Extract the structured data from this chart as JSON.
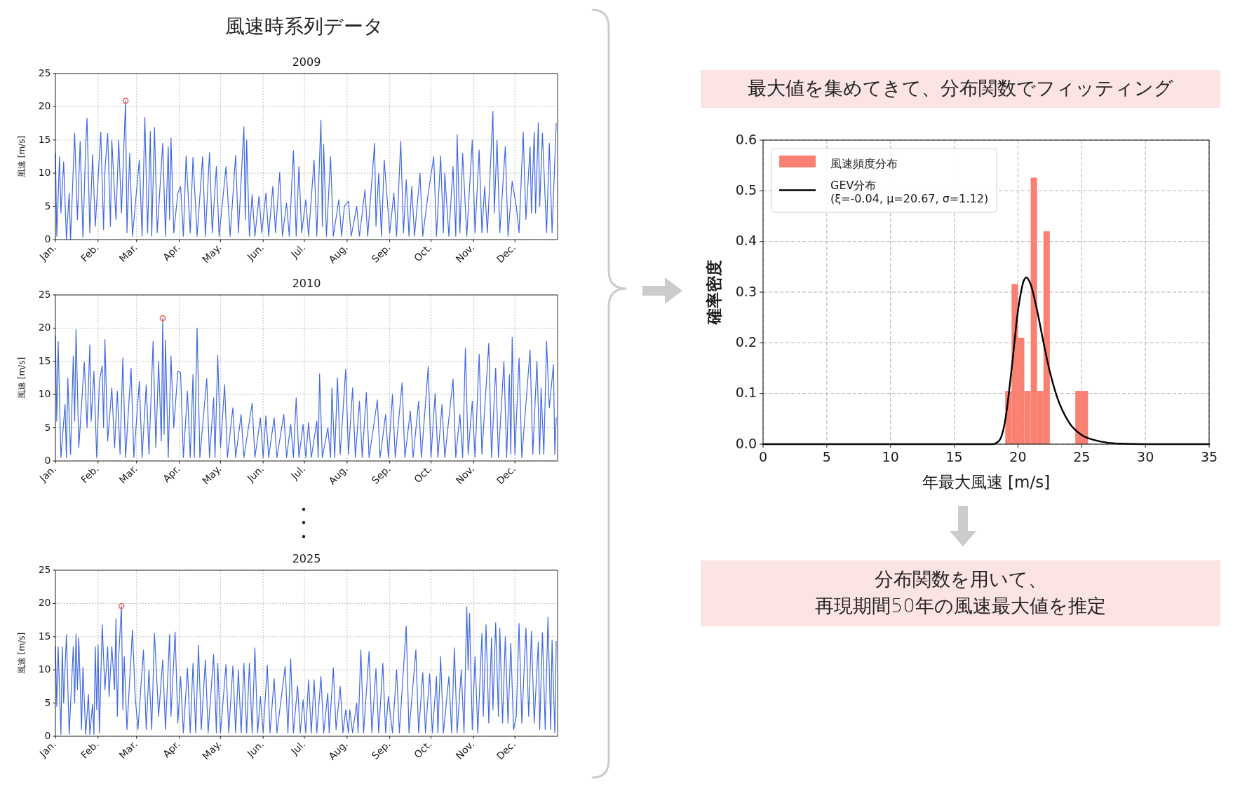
{
  "chart_data": [
    {
      "type": "other",
      "title": "風速時系列データ"
    },
    {
      "type": "line",
      "title": "2009",
      "ylabel": "風速 [m/s]",
      "xlim": [
        "2009-01-01",
        "2010-01-01"
      ],
      "xticks": [
        {
          "value": "2009-01-01",
          "label": "Jan."
        },
        {
          "value": "2009-02-01",
          "label": "Feb."
        },
        {
          "value": "2009-03-01",
          "label": "Mar."
        },
        {
          "value": "2009-04-01",
          "label": "Apr."
        },
        {
          "value": "2009-05-01",
          "label": "May."
        },
        {
          "value": "2009-06-01",
          "label": "Jun."
        },
        {
          "value": "2009-07-01",
          "label": "Jul."
        },
        {
          "value": "2009-08-01",
          "label": "Aug."
        },
        {
          "value": "2009-09-01",
          "label": "Sep."
        },
        {
          "value": "2009-10-01",
          "label": "Oct."
        },
        {
          "value": "2009-11-01",
          "label": "Nov."
        },
        {
          "value": "2009-12-01",
          "label": "Dec."
        }
      ],
      "ylim": [
        0,
        25
      ],
      "yticks": [
        0,
        5,
        10,
        15,
        20,
        25
      ],
      "grid": true,
      "x": [
        "2009-01-01",
        "2009-01-02",
        "2009-01-04",
        "2009-01-05",
        "2009-01-07",
        "2009-01-09",
        "2009-01-11",
        "2009-01-12",
        "2009-01-15",
        "2009-01-17",
        "2009-01-19",
        "2009-01-21",
        "2009-01-23",
        "2009-01-24",
        "2009-01-26",
        "2009-01-28",
        "2009-01-30",
        "2009-02-03",
        "2009-02-05",
        "2009-02-06",
        "2009-02-08",
        "2009-02-10",
        "2009-02-11",
        "2009-02-14",
        "2009-02-16",
        "2009-02-18",
        "2009-02-21",
        "2009-02-22",
        "2009-02-24",
        "2009-02-26",
        "2009-03-03",
        "2009-03-05",
        "2009-03-07",
        "2009-03-09",
        "2009-03-11",
        "2009-03-12",
        "2009-03-14",
        "2009-03-16",
        "2009-03-20",
        "2009-03-22",
        "2009-03-24",
        "2009-03-25",
        "2009-03-26",
        "2009-03-28",
        "2009-03-31",
        "2009-04-02",
        "2009-04-04",
        "2009-04-06",
        "2009-04-09",
        "2009-04-11",
        "2009-04-14",
        "2009-04-18",
        "2009-04-20",
        "2009-04-23",
        "2009-04-25",
        "2009-04-28",
        "2009-04-30",
        "2009-05-05",
        "2009-05-08",
        "2009-05-12",
        "2009-05-14",
        "2009-05-18",
        "2009-05-19",
        "2009-05-20",
        "2009-05-22",
        "2009-05-24",
        "2009-05-26",
        "2009-05-29",
        "2009-05-31",
        "2009-06-03",
        "2009-06-05",
        "2009-06-08",
        "2009-06-10",
        "2009-06-13",
        "2009-06-15",
        "2009-06-18",
        "2009-06-20",
        "2009-06-23",
        "2009-06-25",
        "2009-06-27",
        "2009-06-29",
        "2009-07-02",
        "2009-07-04",
        "2009-07-08",
        "2009-07-10",
        "2009-07-13",
        "2009-07-14",
        "2009-07-15",
        "2009-07-17",
        "2009-07-20",
        "2009-07-22",
        "2009-07-26",
        "2009-07-28",
        "2009-07-30",
        "2009-08-02",
        "2009-08-04",
        "2009-08-08",
        "2009-08-10",
        "2009-08-14",
        "2009-08-16",
        "2009-08-21",
        "2009-08-22",
        "2009-08-24",
        "2009-08-26",
        "2009-08-28",
        "2009-09-01",
        "2009-09-04",
        "2009-09-06",
        "2009-09-09",
        "2009-09-11",
        "2009-09-13",
        "2009-09-15",
        "2009-09-17",
        "2009-09-19",
        "2009-09-23",
        "2009-09-25",
        "2009-09-29",
        "2009-10-03",
        "2009-10-05",
        "2009-10-08",
        "2009-10-10",
        "2009-10-11",
        "2009-10-14",
        "2009-10-17",
        "2009-10-19",
        "2009-10-20",
        "2009-10-22",
        "2009-10-24",
        "2009-10-27",
        "2009-10-31",
        "2009-11-02",
        "2009-11-05",
        "2009-11-07",
        "2009-11-09",
        "2009-11-11",
        "2009-11-15",
        "2009-11-16",
        "2009-11-18",
        "2009-11-20",
        "2009-11-24",
        "2009-11-26",
        "2009-11-29",
        "2009-12-02",
        "2009-12-04",
        "2009-12-07",
        "2009-12-09",
        "2009-12-12",
        "2009-12-13",
        "2009-12-15",
        "2009-12-16",
        "2009-12-18",
        "2009-12-19",
        "2009-12-21",
        "2009-12-24",
        "2009-12-26",
        "2009-12-28",
        "2009-12-31"
      ],
      "series": [
        {
          "color": "#4169e1",
          "values": [
            13,
            0.5,
            12.5,
            4,
            11.7,
            0,
            7,
            0,
            16,
            3,
            14.8,
            0.3,
            14,
            18.3,
            1,
            12.8,
            2,
            16.2,
            1.5,
            10.5,
            16,
            2,
            15,
            3,
            15,
            4,
            20.9,
            1,
            13,
            0.5,
            12,
            0.5,
            18.4,
            1,
            16.3,
            0.5,
            16.9,
            1,
            14.5,
            0.5,
            14,
            3,
            15.3,
            1,
            7,
            8,
            0.5,
            12.6,
            1,
            12.4,
            0.5,
            12.5,
            0.5,
            13.1,
            1,
            11,
            0.5,
            11,
            0.5,
            12.7,
            1,
            17,
            3,
            15,
            0.5,
            6.8,
            0.5,
            6.5,
            1,
            7,
            0.5,
            8,
            1,
            10.1,
            0.5,
            5.5,
            0.5,
            13.4,
            0.5,
            11,
            1,
            6,
            0.5,
            12,
            0.5,
            18,
            2,
            14.3,
            0.5,
            12.5,
            0.5,
            6,
            0.5,
            5,
            5.8,
            0.5,
            5,
            0.5,
            7.5,
            0.5,
            14.5,
            2,
            10,
            0.5,
            12,
            1,
            7,
            0.5,
            14.8,
            1,
            9,
            0.5,
            8,
            0.5,
            10,
            0.5,
            7,
            12.5,
            0.5,
            12.6,
            1,
            10,
            0.5,
            11,
            0.5,
            15.8,
            1,
            13,
            0.5,
            15,
            1,
            13.5,
            1,
            8,
            1,
            19.3,
            4,
            15,
            1,
            14,
            0.5,
            8.8,
            5,
            1,
            16.2,
            3,
            14,
            4,
            16.2,
            4,
            17.6,
            5,
            16,
            1,
            14.5,
            1,
            17.5
          ]
        },
        {
          "type": "scatter",
          "marker": "circle",
          "color": "#f26b5b",
          "x": [
            "2009-02-21"
          ],
          "values": [
            20.9
          ]
        }
      ]
    },
    {
      "type": "line",
      "title": "2010",
      "ylabel": "風速 [m/s]",
      "xlim": [
        "2010-01-01",
        "2011-01-01"
      ],
      "xticks": [
        {
          "value": "2010-01-01",
          "label": "Jan."
        },
        {
          "value": "2010-02-01",
          "label": "Feb."
        },
        {
          "value": "2010-03-01",
          "label": "Mar."
        },
        {
          "value": "2010-04-01",
          "label": "Apr."
        },
        {
          "value": "2010-05-01",
          "label": "May."
        },
        {
          "value": "2010-06-01",
          "label": "Jun."
        },
        {
          "value": "2010-07-01",
          "label": "Jul."
        },
        {
          "value": "2010-08-01",
          "label": "Aug."
        },
        {
          "value": "2010-09-01",
          "label": "Sep."
        },
        {
          "value": "2010-10-01",
          "label": "Oct."
        },
        {
          "value": "2010-11-01",
          "label": "Nov."
        },
        {
          "value": "2010-12-01",
          "label": "Dec."
        }
      ],
      "ylim": [
        0,
        25
      ],
      "yticks": [
        0,
        5,
        10,
        15,
        20,
        25
      ],
      "grid": true,
      "x": [
        "2010-01-01",
        "2010-01-02",
        "2010-01-03",
        "2010-01-05",
        "2010-01-08",
        "2010-01-09",
        "2010-01-10",
        "2010-01-12",
        "2010-01-14",
        "2010-01-15",
        "2010-01-16",
        "2010-01-18",
        "2010-01-22",
        "2010-01-24",
        "2010-01-26",
        "2010-01-27",
        "2010-01-29",
        "2010-01-31",
        "2010-02-02",
        "2010-02-04",
        "2010-02-05",
        "2010-02-06",
        "2010-02-08",
        "2010-02-11",
        "2010-02-13",
        "2010-02-15",
        "2010-02-17",
        "2010-02-19",
        "2010-02-21",
        "2010-02-25",
        "2010-02-27",
        "2010-03-03",
        "2010-03-05",
        "2010-03-08",
        "2010-03-10",
        "2010-03-13",
        "2010-03-15",
        "2010-03-17",
        "2010-03-19",
        "2010-03-20",
        "2010-03-21",
        "2010-03-22",
        "2010-03-24",
        "2010-03-26",
        "2010-03-28",
        "2010-03-31",
        "2010-04-02",
        "2010-04-04",
        "2010-04-07",
        "2010-04-09",
        "2010-04-11",
        "2010-04-12",
        "2010-04-14",
        "2010-04-16",
        "2010-04-21",
        "2010-04-23",
        "2010-04-26",
        "2010-04-27",
        "2010-04-29",
        "2010-05-01",
        "2010-05-04",
        "2010-05-06",
        "2010-05-10",
        "2010-05-12",
        "2010-05-16",
        "2010-05-18",
        "2010-05-24",
        "2010-05-26",
        "2010-05-30",
        "2010-06-01",
        "2010-06-03",
        "2010-06-05",
        "2010-06-09",
        "2010-06-11",
        "2010-06-16",
        "2010-06-18",
        "2010-06-21",
        "2010-06-23",
        "2010-06-25",
        "2010-06-27",
        "2010-06-30",
        "2010-07-02",
        "2010-07-04",
        "2010-07-06",
        "2010-07-10",
        "2010-07-11",
        "2010-07-12",
        "2010-07-14",
        "2010-07-18",
        "2010-07-20",
        "2010-07-21",
        "2010-07-23",
        "2010-07-25",
        "2010-07-27",
        "2010-07-31",
        "2010-08-02",
        "2010-08-05",
        "2010-08-07",
        "2010-08-10",
        "2010-08-12",
        "2010-08-15",
        "2010-08-17",
        "2010-08-23",
        "2010-08-25",
        "2010-08-29",
        "2010-08-31",
        "2010-09-03",
        "2010-09-05",
        "2010-09-10",
        "2010-09-12",
        "2010-09-16",
        "2010-09-18",
        "2010-09-22",
        "2010-09-24",
        "2010-09-29",
        "2010-10-01",
        "2010-10-04",
        "2010-10-06",
        "2010-10-09",
        "2010-10-11",
        "2010-10-17",
        "2010-10-19",
        "2010-10-22",
        "2010-10-24",
        "2010-10-26",
        "2010-10-28",
        "2010-10-31",
        "2010-11-02",
        "2010-11-05",
        "2010-11-07",
        "2010-11-12",
        "2010-11-14",
        "2010-11-17",
        "2010-11-19",
        "2010-11-23",
        "2010-11-25",
        "2010-11-27",
        "2010-11-28",
        "2010-11-29",
        "2010-12-01",
        "2010-12-04",
        "2010-12-06",
        "2010-12-12",
        "2010-12-14",
        "2010-12-17",
        "2010-12-19",
        "2010-12-20",
        "2010-12-22",
        "2010-12-24",
        "2010-12-26",
        "2010-12-29",
        "2010-12-30",
        "2010-12-31"
      ],
      "series": [
        {
          "color": "#4169e1",
          "values": [
            18.8,
            6,
            18,
            0.5,
            8.5,
            0.5,
            12.5,
            1,
            15.8,
            6,
            19.8,
            2,
            14.9,
            5,
            17.5,
            6,
            13.5,
            0.5,
            12,
            14.3,
            5,
            18.3,
            3,
            11,
            2,
            10.5,
            1,
            15.5,
            0.5,
            14,
            0.5,
            12,
            0.5,
            11.5,
            1,
            18,
            2,
            15,
            3,
            21.5,
            4,
            18.2,
            0.5,
            15.8,
            5,
            13.5,
            13.3,
            0.5,
            10.5,
            0.5,
            13,
            0.5,
            20,
            0.5,
            12.4,
            0.5,
            9.5,
            0.5,
            15.9,
            2,
            11.5,
            0.5,
            8,
            0.5,
            7,
            0.5,
            8.7,
            0.5,
            6.5,
            0.5,
            6.8,
            0.5,
            6.5,
            0.5,
            7,
            0.5,
            5.5,
            0.5,
            9.5,
            0.5,
            5.5,
            0.5,
            5.8,
            0.5,
            6,
            0.5,
            13.1,
            0.5,
            5,
            0.5,
            11,
            0.5,
            12.5,
            1,
            13.8,
            1,
            11,
            0.5,
            9,
            0.5,
            10.3,
            0.5,
            9.2,
            0.5,
            7,
            0.5,
            10,
            0.5,
            11.8,
            0.5,
            7.5,
            0.5,
            9,
            0.5,
            14.2,
            0.5,
            10.2,
            0.5,
            8.5,
            0.5,
            12.3,
            0.5,
            7,
            0.5,
            17,
            1,
            9,
            0.5,
            16.1,
            1,
            17.7,
            0.5,
            14,
            0.5,
            15,
            0.5,
            13,
            1,
            18.6,
            1,
            15.5,
            0.5,
            16.7,
            1,
            15,
            1,
            11,
            1,
            18,
            8,
            14.5,
            1,
            6.5
          ]
        },
        {
          "type": "scatter",
          "marker": "circle",
          "color": "#f26b5b",
          "x": [
            "2010-03-20"
          ],
          "values": [
            21.5
          ]
        }
      ]
    },
    {
      "type": "line",
      "title": "2025",
      "ylabel": "風速 [m/s]",
      "xlim": [
        "2025-01-01",
        "2026-01-01"
      ],
      "xticks": [
        {
          "value": "2025-01-01",
          "label": "Jan."
        },
        {
          "value": "2025-02-01",
          "label": "Feb."
        },
        {
          "value": "2025-03-01",
          "label": "Mar."
        },
        {
          "value": "2025-04-01",
          "label": "Apr."
        },
        {
          "value": "2025-05-01",
          "label": "May."
        },
        {
          "value": "2025-06-01",
          "label": "Jun."
        },
        {
          "value": "2025-07-01",
          "label": "Jul."
        },
        {
          "value": "2025-08-01",
          "label": "Aug."
        },
        {
          "value": "2025-09-01",
          "label": "Sep."
        },
        {
          "value": "2025-10-01",
          "label": "Oct."
        },
        {
          "value": "2025-11-01",
          "label": "Nov."
        },
        {
          "value": "2025-12-01",
          "label": "Dec."
        }
      ],
      "ylim": [
        0,
        25
      ],
      "yticks": [
        0,
        5,
        10,
        15,
        20,
        25
      ],
      "grid": true,
      "x": [
        "2025-01-01",
        "2025-01-02",
        "2025-01-03",
        "2025-01-05",
        "2025-01-06",
        "2025-01-07",
        "2025-01-09",
        "2025-01-11",
        "2025-01-14",
        "2025-01-15",
        "2025-01-16",
        "2025-01-17",
        "2025-01-18",
        "2025-01-20",
        "2025-01-21",
        "2025-01-23",
        "2025-01-25",
        "2025-01-26",
        "2025-01-28",
        "2025-01-29",
        "2025-01-30",
        "2025-01-31",
        "2025-02-01",
        "2025-02-02",
        "2025-02-04",
        "2025-02-06",
        "2025-02-08",
        "2025-02-09",
        "2025-02-11",
        "2025-02-13",
        "2025-02-14",
        "2025-02-15",
        "2025-02-16",
        "2025-02-18",
        "2025-02-19",
        "2025-02-20",
        "2025-02-22",
        "2025-02-26",
        "2025-02-28",
        "2025-03-02",
        "2025-03-06",
        "2025-03-08",
        "2025-03-10",
        "2025-03-12",
        "2025-03-14",
        "2025-03-17",
        "2025-03-20",
        "2025-03-22",
        "2025-03-25",
        "2025-03-26",
        "2025-03-29",
        "2025-03-31",
        "2025-04-02",
        "2025-04-04",
        "2025-04-07",
        "2025-04-09",
        "2025-04-11",
        "2025-04-13",
        "2025-04-15",
        "2025-04-17",
        "2025-04-20",
        "2025-04-22",
        "2025-04-26",
        "2025-04-28",
        "2025-04-29",
        "2025-05-01",
        "2025-05-05",
        "2025-05-07",
        "2025-05-10",
        "2025-05-12",
        "2025-05-14",
        "2025-05-16",
        "2025-05-18",
        "2025-05-20",
        "2025-05-22",
        "2025-05-24",
        "2025-05-26",
        "2025-05-28",
        "2025-05-30",
        "2025-06-01",
        "2025-06-04",
        "2025-06-06",
        "2025-06-09",
        "2025-06-11",
        "2025-06-17",
        "2025-06-19",
        "2025-06-21",
        "2025-06-23",
        "2025-06-26",
        "2025-06-28",
        "2025-06-30",
        "2025-07-02",
        "2025-07-04",
        "2025-07-06",
        "2025-07-08",
        "2025-07-10",
        "2025-07-13",
        "2025-07-15",
        "2025-07-18",
        "2025-07-19",
        "2025-07-22",
        "2025-07-24",
        "2025-07-27",
        "2025-07-29",
        "2025-07-31",
        "2025-08-02",
        "2025-08-03",
        "2025-08-05",
        "2025-08-08",
        "2025-08-09",
        "2025-08-11",
        "2025-08-13",
        "2025-08-17",
        "2025-08-19",
        "2025-08-22",
        "2025-08-24",
        "2025-08-27",
        "2025-08-29",
        "2025-08-31",
        "2025-09-03",
        "2025-09-06",
        "2025-09-08",
        "2025-09-13",
        "2025-09-15",
        "2025-09-20",
        "2025-09-22",
        "2025-09-25",
        "2025-09-27",
        "2025-09-30",
        "2025-10-02",
        "2025-10-05",
        "2025-10-06",
        "2025-10-08",
        "2025-10-10",
        "2025-10-14",
        "2025-10-16",
        "2025-10-18",
        "2025-10-20",
        "2025-10-23",
        "2025-10-25",
        "2025-10-27",
        "2025-10-28",
        "2025-10-29",
        "2025-10-31",
        "2025-11-02",
        "2025-11-04",
        "2025-11-07",
        "2025-11-08",
        "2025-11-10",
        "2025-11-12",
        "2025-11-14",
        "2025-11-15",
        "2025-11-17",
        "2025-11-19",
        "2025-11-20",
        "2025-11-22",
        "2025-11-24",
        "2025-11-26",
        "2025-11-28",
        "2025-11-30",
        "2025-12-02",
        "2025-12-04",
        "2025-12-06",
        "2025-12-09",
        "2025-12-11",
        "2025-12-13",
        "2025-12-15",
        "2025-12-18",
        "2025-12-19",
        "2025-12-21",
        "2025-12-23",
        "2025-12-25",
        "2025-12-27",
        "2025-12-28",
        "2025-12-30",
        "2025-12-31"
      ],
      "series": [
        {
          "color": "#4169e1",
          "values": [
            13.5,
            4.5,
            13.5,
            0.3,
            13.5,
            5,
            15.3,
            0.3,
            13.5,
            5,
            15.4,
            7,
            14.8,
            1,
            10.4,
            0.3,
            6.3,
            0.3,
            4.8,
            0.3,
            13.5,
            4,
            13.7,
            0.5,
            16.8,
            7,
            13.5,
            6,
            13.5,
            7,
            17.7,
            3,
            12,
            19.6,
            4,
            12,
            1,
            16,
            6,
            1,
            13,
            1,
            10,
            1,
            15.5,
            3,
            11.5,
            1,
            15.3,
            3,
            15.7,
            2,
            9,
            0.5,
            10.3,
            0.5,
            11,
            0.5,
            13.7,
            1,
            11.5,
            0.5,
            12.3,
            0.5,
            11,
            0.5,
            10.8,
            0.5,
            10.6,
            0.5,
            10,
            0.5,
            11,
            0.5,
            11,
            0.5,
            13.3,
            0.5,
            6,
            0.5,
            10.7,
            0.5,
            8.7,
            0.5,
            10.5,
            0.5,
            11.7,
            0.5,
            7.6,
            0.5,
            5.5,
            0.5,
            8.5,
            0.5,
            8.5,
            0.5,
            9,
            0.5,
            6.5,
            0.5,
            10.3,
            1,
            7.5,
            0.5,
            4,
            0.5,
            4,
            0.5,
            5,
            0.5,
            13,
            0.5,
            12.8,
            0.5,
            10.2,
            0.5,
            11,
            0.5,
            6,
            0.5,
            10,
            0.5,
            16.6,
            0.5,
            13,
            0.5,
            9.6,
            0.5,
            9.4,
            0.5,
            9,
            0.5,
            12,
            0.5,
            9,
            0.5,
            13.3,
            0.5,
            10,
            0.5,
            19.5,
            10,
            18.5,
            1,
            12,
            0.5,
            15.5,
            3,
            16.8,
            2,
            14.8,
            4,
            17.1,
            3,
            16.3,
            2,
            15,
            2,
            14,
            1,
            3,
            17,
            2,
            16.3,
            3,
            15.8,
            2,
            14.2,
            1,
            15.6,
            1,
            17.9,
            1,
            14.5,
            0.5,
            14.3
          ]
        },
        {
          "type": "scatter",
          "marker": "circle",
          "color": "#f26b5b",
          "x": [
            "2025-02-18"
          ],
          "values": [
            19.6
          ]
        }
      ]
    },
    {
      "type": "other",
      "annotations": [
        "最大値を集めてきて、分布関数でフィッティング"
      ],
      "color": "#fce4e4"
    },
    {
      "type": "histogram",
      "xlabel": "年最大風速 [m/s]",
      "ylabel": "確率密度",
      "xlim": [
        0,
        35
      ],
      "xticks": [
        0,
        5,
        10,
        15,
        20,
        25,
        30,
        35
      ],
      "ylim": [
        0,
        0.6
      ],
      "yticks": [
        {
          "value": 0,
          "label": "0.0"
        },
        0.1,
        0.2,
        0.3,
        0.4,
        0.5,
        0.6
      ],
      "grid": true,
      "legend": "top left",
      "bins": [
        19,
        19.5,
        20,
        20.5,
        21,
        21.5,
        22,
        22.5,
        24.5,
        25,
        25.5
      ],
      "series": [
        {
          "type": "histogram",
          "name": "風速頻度分布",
          "color": "#fa8072",
          "values": [
            0.105,
            0.316,
            0.21,
            0.105,
            0.526,
            0.105,
            0.42,
            0,
            0.105,
            0.105
          ]
        },
        {
          "type": "line",
          "name": "GEV分布\n(ξ=-0.04, μ=20.67, σ=1.12)",
          "color": "#000000",
          "x": [
            0,
            5,
            10,
            15,
            17,
            18,
            18.5,
            19,
            19.5,
            20,
            20.5,
            20.67,
            21,
            21.5,
            22,
            22.5,
            23,
            24,
            25,
            26,
            27,
            28,
            30,
            35
          ],
          "values": [
            0,
            0,
            0,
            0,
            0,
            0,
            0.006,
            0.047,
            0.148,
            0.263,
            0.325,
            0.329,
            0.315,
            0.264,
            0.201,
            0.143,
            0.098,
            0.043,
            0.018,
            0.008,
            0.003,
            0.001,
            0,
            0
          ]
        }
      ]
    },
    {
      "type": "other",
      "annotations": [
        "分布関数を用いて、",
        "再現期間50年の風速最大値を推定"
      ],
      "color": "#fce4e4"
    }
  ]
}
